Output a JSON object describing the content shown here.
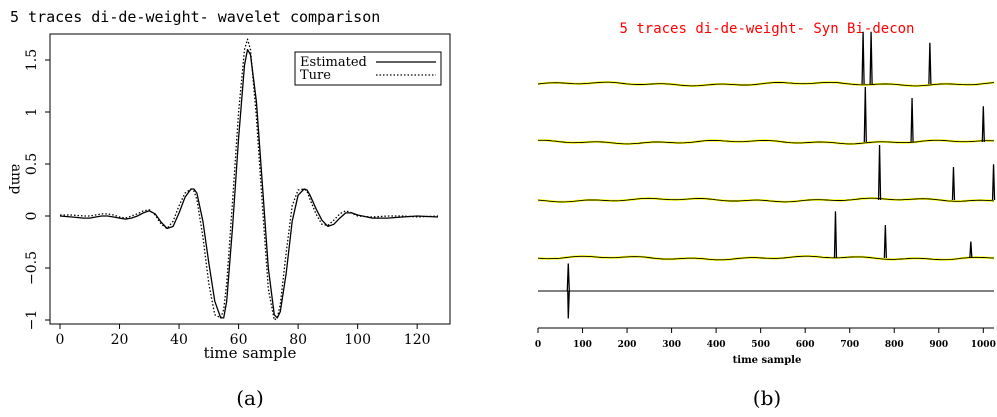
{
  "chart_data": [
    {
      "type": "line",
      "title": "5 traces di-de-weight- wavelet comparison",
      "xlabel": "time sample",
      "ylabel": "amp",
      "xlim": [
        0,
        127
      ],
      "ylim": [
        -1.05,
        1.75
      ],
      "xticks": [
        "0",
        "20",
        "40",
        "60",
        "80",
        "100",
        "120"
      ],
      "yticks": [
        "−1",
        "−0.5",
        "0",
        "0.5",
        "1",
        "1.5"
      ],
      "legend_position": "top-right",
      "series": [
        {
          "name": "Estimated",
          "style": "solid",
          "x": [
            0,
            4,
            8,
            10,
            12,
            14,
            16,
            18,
            20,
            22,
            24,
            26,
            28,
            30,
            32,
            34,
            36,
            38,
            40,
            42,
            44,
            45,
            46,
            48,
            50,
            52,
            54,
            55,
            56,
            58,
            60,
            62,
            63,
            64,
            66,
            68,
            70,
            72,
            73,
            74,
            76,
            78,
            80,
            82,
            83,
            84,
            86,
            88,
            90,
            92,
            94,
            96,
            98,
            100,
            105,
            110,
            115,
            120,
            127
          ],
          "y": [
            0,
            -0.01,
            -0.02,
            -0.02,
            -0.01,
            0.0,
            0.0,
            -0.01,
            -0.02,
            -0.03,
            -0.02,
            0.0,
            0.03,
            0.05,
            0.02,
            -0.06,
            -0.12,
            -0.1,
            0.03,
            0.18,
            0.26,
            0.26,
            0.22,
            -0.05,
            -0.45,
            -0.82,
            -0.98,
            -0.98,
            -0.82,
            -0.1,
            0.75,
            1.45,
            1.6,
            1.55,
            1.1,
            0.3,
            -0.5,
            -0.95,
            -0.98,
            -0.92,
            -0.55,
            -0.05,
            0.2,
            0.26,
            0.25,
            0.2,
            0.07,
            -0.04,
            -0.1,
            -0.08,
            -0.02,
            0.03,
            0.03,
            0.01,
            -0.02,
            -0.02,
            -0.01,
            0.0,
            -0.01
          ]
        },
        {
          "name": "Ture",
          "style": "dotted",
          "x": [
            0,
            4,
            8,
            10,
            12,
            14,
            16,
            18,
            20,
            22,
            24,
            26,
            28,
            30,
            32,
            34,
            36,
            38,
            40,
            42,
            44,
            45,
            46,
            48,
            50,
            52,
            54,
            55,
            56,
            58,
            60,
            62,
            63,
            64,
            66,
            68,
            70,
            72,
            73,
            74,
            76,
            78,
            80,
            82,
            83,
            84,
            86,
            88,
            90,
            92,
            94,
            96,
            98,
            100,
            105,
            110,
            115,
            120,
            127
          ],
          "y": [
            0.01,
            0.01,
            0.0,
            0.0,
            0.01,
            0.02,
            0.02,
            0.01,
            -0.01,
            -0.02,
            0.0,
            0.02,
            0.05,
            0.06,
            0.01,
            -0.08,
            -0.12,
            -0.05,
            0.1,
            0.22,
            0.26,
            0.24,
            0.16,
            -0.2,
            -0.65,
            -0.95,
            -0.98,
            -0.9,
            -0.65,
            0.15,
            1.0,
            1.6,
            1.7,
            1.6,
            0.95,
            0.1,
            -0.7,
            -1.0,
            -0.98,
            -0.85,
            -0.35,
            0.1,
            0.25,
            0.26,
            0.24,
            0.16,
            0.02,
            -0.08,
            -0.09,
            -0.04,
            0.02,
            0.05,
            0.03,
            0.0,
            -0.01,
            0.0,
            0.0,
            -0.01,
            0.0
          ]
        }
      ]
    },
    {
      "type": "line",
      "title": "5 traces di-de-weight- Syn Bi-decon",
      "xlabel": "time sample",
      "xlim": [
        0,
        1024
      ],
      "xticks": [
        "0",
        "100",
        "200",
        "300",
        "400",
        "500",
        "600",
        "700",
        "800",
        "900",
        "1000"
      ],
      "colors": {
        "title": "#ff0000",
        "trace": "#000000",
        "trace_fill": "#ffff00"
      },
      "series": [
        {
          "spikes": [
            {
              "t": 730,
              "amp": 0.95
            },
            {
              "t": 748,
              "amp": 0.95
            },
            {
              "t": 880,
              "amp": 0.75
            }
          ]
        },
        {
          "spikes": [
            {
              "t": 735,
              "amp": 1.0
            },
            {
              "t": 840,
              "amp": 0.8
            },
            {
              "t": 1000,
              "amp": 0.65
            }
          ]
        },
        {
          "spikes": [
            {
              "t": 767,
              "amp": 1.0
            },
            {
              "t": 933,
              "amp": 0.6
            },
            {
              "t": 1023,
              "amp": 0.65
            }
          ]
        },
        {
          "spikes": [
            {
              "t": 668,
              "amp": 0.85
            },
            {
              "t": 780,
              "amp": 0.6
            },
            {
              "t": 972,
              "amp": 0.3
            }
          ]
        },
        {
          "spikes": [
            {
              "t": 68,
              "amp": 0.5,
              "neg_amp": 0.5
            }
          ]
        }
      ]
    }
  ],
  "captions": {
    "a": "(a)",
    "b": "(b)"
  }
}
